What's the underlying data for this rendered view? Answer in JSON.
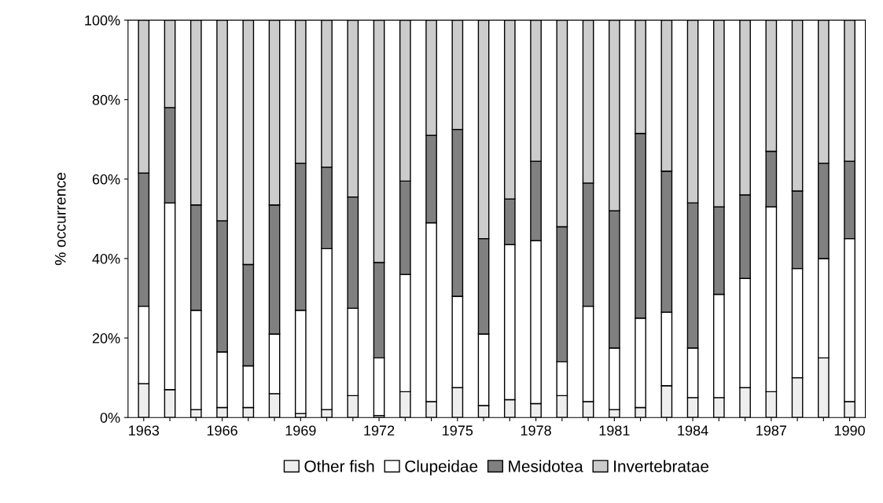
{
  "chart_data": {
    "type": "bar",
    "stacked": true,
    "ylabel": "% occurrence",
    "categories": [
      "1963",
      null,
      null,
      "1966",
      null,
      null,
      "1969",
      null,
      null,
      "1972",
      null,
      null,
      "1975",
      null,
      null,
      "1978",
      null,
      null,
      "1981",
      null,
      null,
      "1984",
      null,
      null,
      "1987",
      null,
      null,
      "1990"
    ],
    "series": [
      {
        "name": "Other fish",
        "color": "#eeeeee",
        "values": [
          8.5,
          7,
          2,
          2.5,
          2.5,
          6,
          1,
          2,
          5.5,
          0.5,
          6.5,
          4,
          7.5,
          3,
          4.5,
          3.5,
          5.5,
          4,
          2,
          2.5,
          8,
          5,
          5,
          7.5,
          6.5,
          10,
          15,
          4
        ]
      },
      {
        "name": "Clupeidae",
        "color": "#ffffff",
        "values": [
          19.5,
          47,
          25,
          14,
          10.5,
          15,
          26,
          40.5,
          22,
          14.5,
          29.5,
          45,
          23,
          18,
          39,
          41,
          8.5,
          24,
          15.5,
          22.5,
          18.5,
          12.5,
          26,
          27.5,
          46.5,
          27.5,
          25,
          41
        ]
      },
      {
        "name": "Mesidotea",
        "color": "#808080",
        "values": [
          33.5,
          24,
          26.5,
          33,
          25.5,
          32.5,
          37,
          20.5,
          28,
          24,
          23.5,
          22,
          42,
          24,
          11.5,
          20,
          34,
          31,
          34.5,
          46.5,
          35.5,
          36.5,
          22,
          21,
          14,
          19.5,
          24,
          19.5
        ]
      },
      {
        "name": "Invertebratae",
        "color": "#cccccc",
        "values": [
          38.5,
          22,
          46.5,
          50.5,
          61.5,
          46.5,
          36,
          37,
          44.5,
          61,
          40.5,
          29,
          27.5,
          55,
          45,
          35.5,
          52,
          41,
          48,
          28.5,
          38,
          46,
          47,
          44,
          33,
          43,
          36,
          35.5
        ]
      }
    ],
    "ylim": [
      0,
      100
    ],
    "yticks": [
      {
        "value": 0,
        "label": "0%"
      },
      {
        "value": 20,
        "label": "20%"
      },
      {
        "value": 40,
        "label": "40%"
      },
      {
        "value": 60,
        "label": "60%"
      },
      {
        "value": 80,
        "label": "80%"
      },
      {
        "value": 100,
        "label": "100%"
      }
    ],
    "grid": false,
    "legend": "bottom"
  }
}
